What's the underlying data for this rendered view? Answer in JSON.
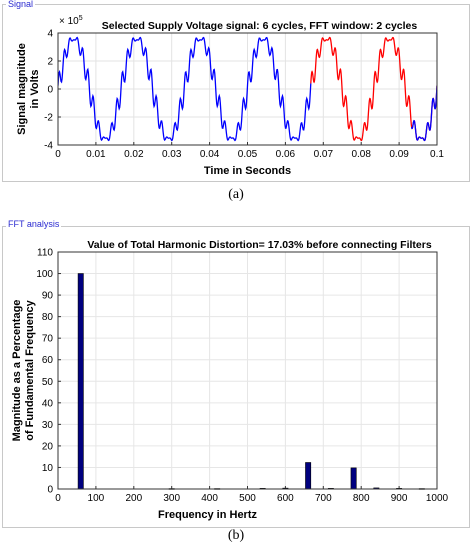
{
  "panel_a": {
    "tab_label": "Signal",
    "caption": "(a)",
    "chart_data": {
      "type": "line",
      "title": "Selected Supply Voltage signal: 6 cycles, FFT window: 2 cycles",
      "xlabel": "Time in Seconds",
      "ylabel_line1": "Signal magnitude",
      "ylabel_line2": "in Volts",
      "exponent_label_base": "× 10",
      "exponent_label_power": "5",
      "xlim": [
        0,
        0.1
      ],
      "ylim": [
        -4,
        4
      ],
      "y_scale_factor": 100000,
      "xticks": [
        "0",
        "0.01",
        "0.02",
        "0.03",
        "0.04",
        "0.05",
        "0.06",
        "0.07",
        "0.08",
        "0.09",
        "0.1"
      ],
      "yticks": [
        "4",
        "2",
        "0",
        "-2",
        "-4"
      ],
      "fundamental_hz": 60,
      "fundamental_amplitude": 3.6,
      "harmonics": [
        {
          "order": 11,
          "relative_amplitude": 0.124
        },
        {
          "order": 13,
          "relative_amplitude": 0.1
        }
      ],
      "series": [
        {
          "color": "#0000ff",
          "x_range": [
            0,
            0.0667
          ]
        },
        {
          "color": "#ff0000",
          "x_range": [
            0.0667,
            0.1
          ]
        },
        {
          "color": "#0000ff",
          "x_range": [
            0.0933,
            0.1
          ]
        }
      ],
      "grid": true
    }
  },
  "panel_b": {
    "tab_label": "FFT analysis",
    "caption": "(b)",
    "chart_data": {
      "type": "bar",
      "title": "Value of Total Harmonic Distortion= 17.03% before connecting Filters",
      "xlabel": "Frequency in Hertz",
      "ylabel_line1": "Magnitude as a Percentage",
      "ylabel_line2": "of Fundamental Frequency",
      "xlim": [
        0,
        1000
      ],
      "ylim": [
        0,
        110
      ],
      "xticks": [
        "0",
        "100",
        "200",
        "300",
        "400",
        "500",
        "600",
        "700",
        "800",
        "900",
        "1000"
      ],
      "yticks": [
        "0",
        "10",
        "20",
        "30",
        "40",
        "50",
        "60",
        "70",
        "80",
        "90",
        "100",
        "110"
      ],
      "bar_color": "#00007f",
      "bars": [
        {
          "x": 60,
          "value": 100
        },
        {
          "x": 660,
          "value": 12.3
        },
        {
          "x": 780,
          "value": 9.8
        },
        {
          "x": 300,
          "value": 0.2
        },
        {
          "x": 420,
          "value": 0.2
        },
        {
          "x": 540,
          "value": 0.3
        },
        {
          "x": 600,
          "value": 0.4
        },
        {
          "x": 720,
          "value": 0.3
        },
        {
          "x": 840,
          "value": 0.5
        },
        {
          "x": 900,
          "value": 0.3
        },
        {
          "x": 960,
          "value": 0.2
        }
      ],
      "grid": true
    }
  }
}
